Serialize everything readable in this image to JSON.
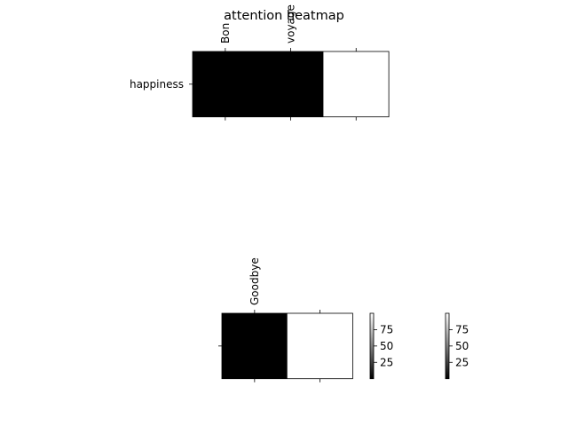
{
  "chart_data": [
    {
      "type": "heatmap",
      "title": "attention heatmap",
      "x_tick_labels": [
        "Bon",
        "voyage",
        ""
      ],
      "y_tick_labels": [
        "happiness"
      ],
      "values": [
        [
          0,
          0,
          100
        ]
      ],
      "colormap": "gray",
      "vmin": 0,
      "vmax": 100
    },
    {
      "type": "heatmap",
      "x_tick_labels": [
        "Goodbye",
        ""
      ],
      "y_tick_labels": [
        ""
      ],
      "values": [
        [
          0,
          100
        ]
      ],
      "colormap": "gray",
      "vmin": 0,
      "vmax": 100
    }
  ],
  "colorbars": [
    {
      "colormap": "gray",
      "vmin": 0,
      "vmax": 100,
      "ticks": [
        25,
        50,
        75
      ],
      "tick_labels": [
        "25",
        "50",
        "75"
      ]
    },
    {
      "colormap": "gray",
      "vmin": 0,
      "vmax": 100,
      "ticks": [
        25,
        50,
        75
      ],
      "tick_labels": [
        "25",
        "50",
        "75"
      ]
    }
  ]
}
